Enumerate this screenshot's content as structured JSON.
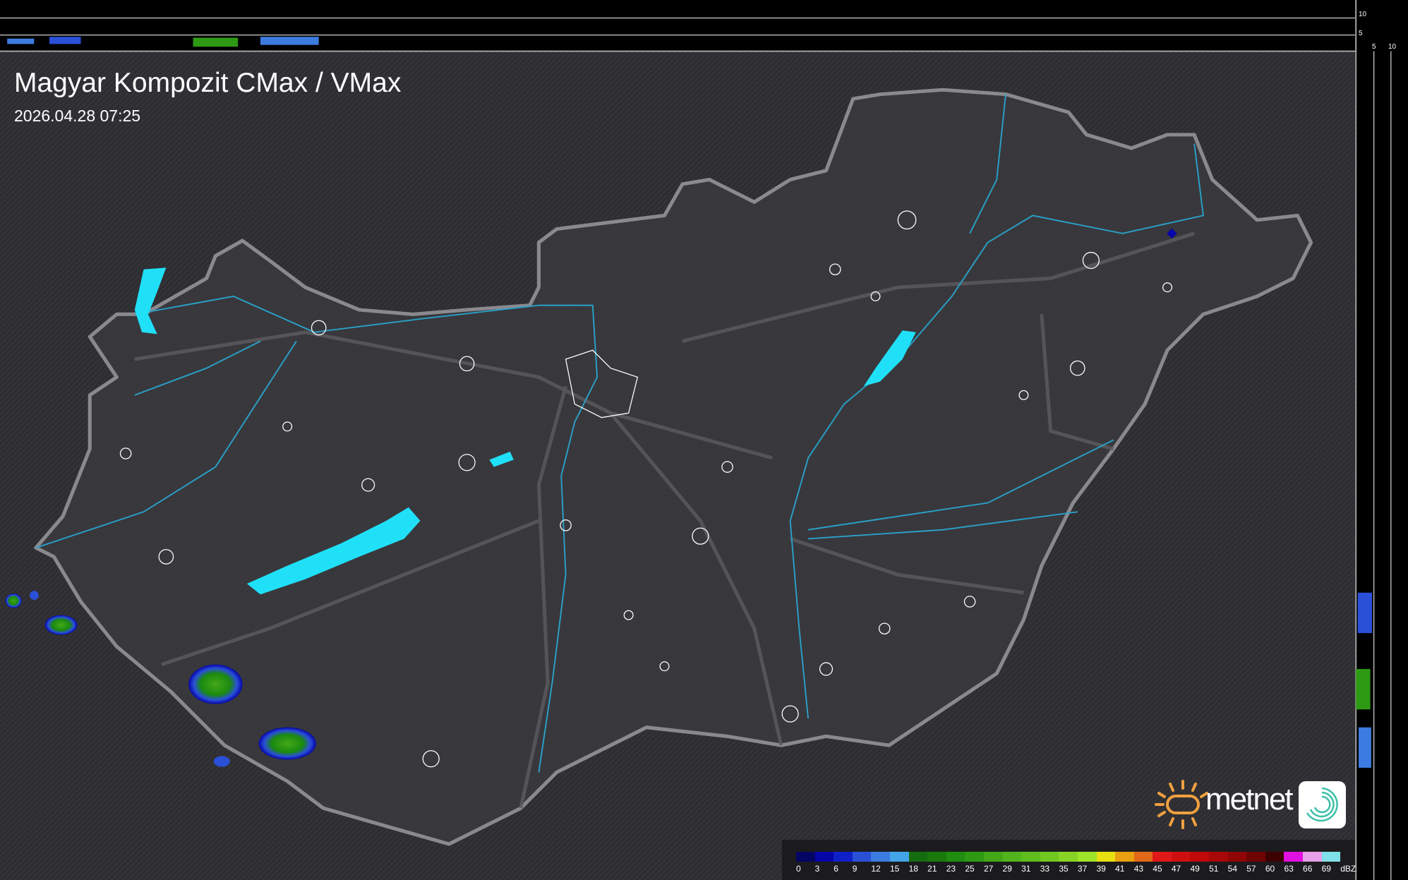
{
  "header": {
    "title": "Magyar Kompozit CMax / VMax",
    "timestamp": "2026.04.28 07:25"
  },
  "profile_axes": {
    "top_ticks": [
      "10",
      "5"
    ],
    "right_ticks": [
      "5",
      "10"
    ]
  },
  "legend": {
    "unit": "dBZ",
    "labels": [
      "0",
      "3",
      "6",
      "9",
      "12",
      "15",
      "18",
      "21",
      "23",
      "25",
      "27",
      "29",
      "31",
      "33",
      "35",
      "37",
      "39",
      "41",
      "43",
      "45",
      "47",
      "49",
      "51",
      "54",
      "57",
      "60",
      "63",
      "66",
      "69"
    ],
    "colors": [
      "#050565",
      "#0606a8",
      "#1020c8",
      "#2a50d8",
      "#3c7ce0",
      "#44a4e8",
      "#156b10",
      "#1a7a0c",
      "#208c10",
      "#2e9a14",
      "#42a818",
      "#52b41c",
      "#5ebe1e",
      "#70c820",
      "#88d424",
      "#9ee428",
      "#e8e010",
      "#e8a010",
      "#e06818",
      "#e01818",
      "#d01010",
      "#c00a0a",
      "#a80808",
      "#900606",
      "#700404",
      "#3c0202",
      "#e010e0",
      "#e8a0e8",
      "#80e0e8"
    ]
  },
  "logo": {
    "brand": "metnet",
    "sun_color": "#f0a040",
    "badge_color": "#3cbfa8"
  },
  "map": {
    "background": "#303034",
    "outline_color": "#8a8a8e",
    "water_color": "#20e0f8",
    "river_color": "#2aa0c8"
  }
}
